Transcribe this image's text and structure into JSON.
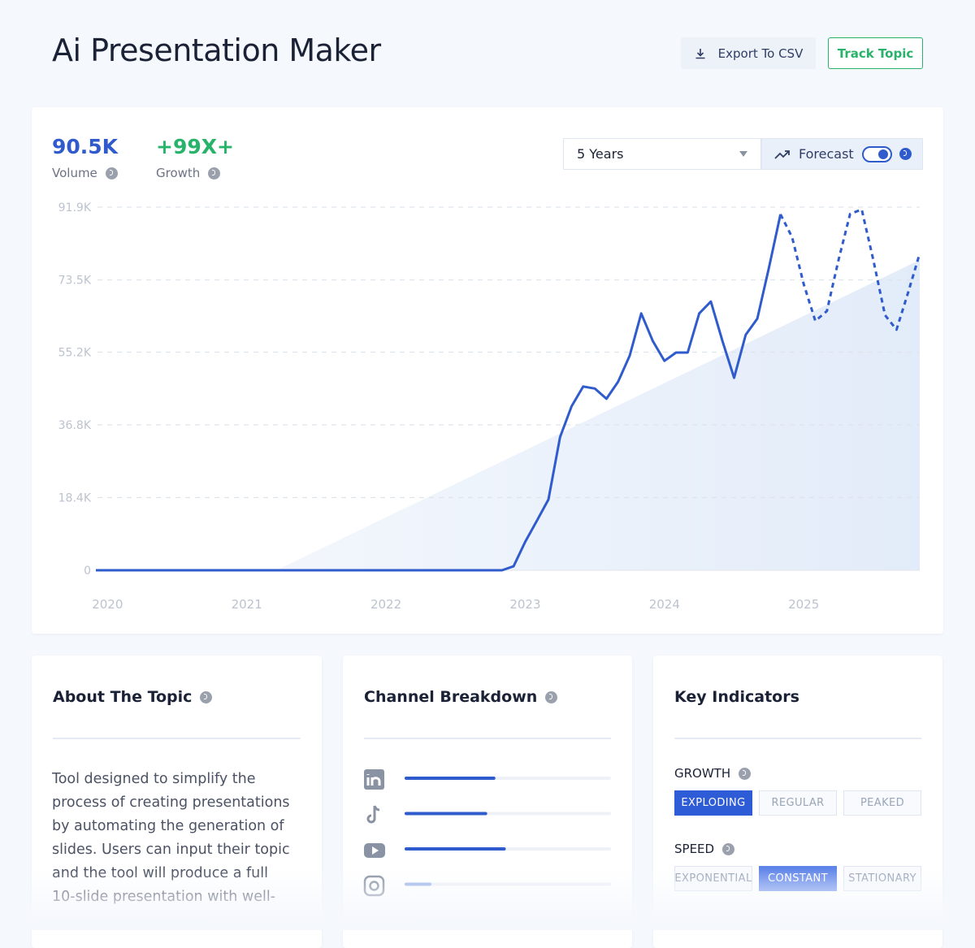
{
  "header": {
    "title": "Ai Presentation Maker",
    "export": "Export To CSV",
    "track": "Track Topic"
  },
  "stats": {
    "volume": "90.5K",
    "volume_label": "Volume",
    "growth": "+99X+",
    "growth_label": "Growth"
  },
  "controls": {
    "range": "5 Years",
    "forecast": "Forecast"
  },
  "chart_data": {
    "type": "line",
    "categories": [
      null,
      "2020",
      null,
      null,
      null,
      null,
      null,
      null,
      null,
      null,
      null,
      null,
      null,
      "2021",
      null,
      null,
      null,
      null,
      null,
      null,
      null,
      null,
      null,
      null,
      null,
      "2022",
      null,
      null,
      null,
      null,
      null,
      null,
      null,
      null,
      null,
      null,
      null,
      "2023",
      null,
      null,
      null,
      null,
      null,
      null,
      null,
      null,
      null,
      null,
      null,
      "2024",
      null,
      null,
      null,
      null,
      null,
      null,
      null,
      null,
      null,
      null,
      null,
      "2025",
      null,
      null,
      null,
      null,
      null,
      null,
      null,
      null,
      null,
      null
    ],
    "series": [
      {
        "color": "#2f5bcc",
        "dashed": false,
        "values": [
          0,
          0,
          0,
          0,
          0,
          0,
          0,
          0,
          0,
          0,
          0,
          0,
          0,
          0,
          0,
          0,
          0,
          0,
          0,
          0,
          0,
          0,
          0,
          0,
          0,
          0,
          0,
          0,
          0,
          0,
          0,
          0,
          0,
          0,
          0,
          0,
          1000,
          7200,
          12500,
          17900,
          33700,
          41500,
          46500,
          46000,
          43400,
          47700,
          54300,
          65000,
          58000,
          53000,
          55100,
          55100,
          65000,
          68000,
          58000,
          48700,
          59600,
          63700,
          76500,
          90100,
          null,
          null,
          null,
          null,
          null,
          null,
          null,
          null,
          null,
          null,
          null,
          null
        ]
      },
      {
        "color": "#2f5bcc",
        "dashed": true,
        "values": [
          null,
          null,
          null,
          null,
          null,
          null,
          null,
          null,
          null,
          null,
          null,
          null,
          null,
          null,
          null,
          null,
          null,
          null,
          null,
          null,
          null,
          null,
          null,
          null,
          null,
          null,
          null,
          null,
          null,
          null,
          null,
          null,
          null,
          null,
          null,
          null,
          null,
          null,
          null,
          null,
          null,
          null,
          null,
          null,
          null,
          null,
          null,
          null,
          null,
          null,
          null,
          null,
          null,
          null,
          null,
          null,
          null,
          null,
          null,
          90100,
          84300,
          72400,
          63100,
          65600,
          78500,
          90200,
          91300,
          78500,
          64600,
          60900,
          70300,
          80200
        ]
      }
    ],
    "ylim": [
      0,
      91900
    ],
    "yticks": [
      0,
      {
        "value": 18400,
        "label": "18.4K"
      },
      {
        "value": 36800,
        "label": "36.8K"
      },
      {
        "value": 55200,
        "label": "55.2K"
      },
      {
        "value": 73500,
        "label": "73.5K"
      },
      {
        "value": 91900,
        "label": "91.9K"
      }
    ],
    "grid": true
  },
  "about": {
    "title": "About The Topic",
    "text": "Tool designed to simplify the process of creating presentations by automating the generation of slides. Users can input their topic and the tool will produce a full 10-slide presentation with well-"
  },
  "channels": {
    "title": "Channel Breakdown",
    "values": [
      44,
      40,
      49,
      13
    ],
    "colors": [
      "#2f5bcc",
      "#2f5bcc",
      "#2f5bcc",
      "#9fb6ea"
    ]
  },
  "indicators": {
    "title": "Key Indicators",
    "groups": [
      {
        "label": "GROWTH",
        "options": [
          "EXPLODING",
          "REGULAR",
          "PEAKED"
        ],
        "selected": 0
      },
      {
        "label": "SPEED",
        "options": [
          "EXPONENTIAL",
          "CONSTANT",
          "STATIONARY"
        ],
        "selected": 1
      }
    ]
  }
}
